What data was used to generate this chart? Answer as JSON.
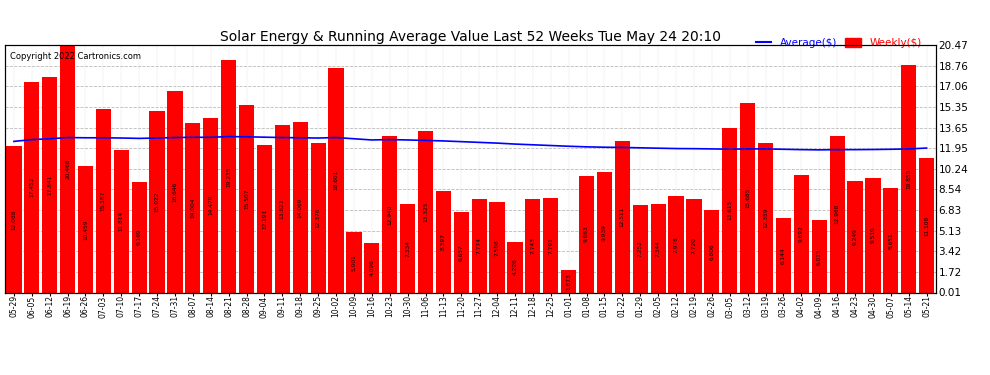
{
  "title": "Solar Energy & Running Average Value Last 52 Weeks Tue May 24 20:10",
  "copyright": "Copyright 2022 Cartronics.com",
  "bar_color": "#ff0000",
  "avg_line_color": "#0000ff",
  "background_color": "#ffffff",
  "grid_color": "#aaaaaa",
  "categories": [
    "05-29",
    "06-05",
    "06-12",
    "06-19",
    "06-26",
    "07-03",
    "07-10",
    "07-17",
    "07-24",
    "07-31",
    "08-07",
    "08-14",
    "08-21",
    "08-28",
    "09-04",
    "09-11",
    "09-18",
    "09-25",
    "10-02",
    "10-09",
    "10-16",
    "10-23",
    "10-30",
    "11-06",
    "11-13",
    "11-20",
    "11-27",
    "12-04",
    "12-11",
    "12-18",
    "12-25",
    "01-01",
    "01-08",
    "01-15",
    "01-22",
    "01-29",
    "02-05",
    "02-12",
    "02-19",
    "02-26",
    "03-05",
    "03-12",
    "03-19",
    "03-26",
    "04-02",
    "04-09",
    "04-16",
    "04-23",
    "04-30",
    "05-07",
    "05-14",
    "05-21"
  ],
  "weekly_values": [
    12.088,
    17.452,
    17.841,
    20.468,
    10.459,
    15.187,
    11.814,
    9.169,
    15.022,
    16.646,
    14.004,
    14.47,
    19.235,
    15.507,
    12.191,
    13.823,
    14.069,
    12.376,
    18.601,
    5.001,
    4.096,
    12.94,
    7.334,
    13.325,
    8.397,
    6.637,
    7.774,
    7.506,
    4.226,
    7.743,
    7.791,
    1.873,
    9.663,
    9.939,
    12.511,
    7.252,
    7.344,
    7.978,
    7.72,
    6.806,
    13.615,
    15.685,
    12.359,
    6.144,
    9.692,
    6.015,
    12.968,
    9.249,
    9.51,
    8.651,
    18.855,
    11.108
  ],
  "avg_values": [
    12.5,
    12.65,
    12.72,
    12.82,
    12.8,
    12.8,
    12.78,
    12.75,
    12.78,
    12.82,
    12.84,
    12.84,
    12.9,
    12.88,
    12.85,
    12.82,
    12.8,
    12.78,
    12.82,
    12.72,
    12.62,
    12.65,
    12.62,
    12.58,
    12.54,
    12.48,
    12.42,
    12.36,
    12.28,
    12.22,
    12.16,
    12.1,
    12.05,
    12.02,
    12.0,
    11.97,
    11.94,
    11.91,
    11.9,
    11.88,
    11.86,
    11.88,
    11.88,
    11.85,
    11.82,
    11.8,
    11.82,
    11.82,
    11.83,
    11.85,
    11.88,
    11.95
  ],
  "ylim": [
    0.01,
    20.47
  ],
  "yticks_right": [
    0.01,
    1.72,
    3.42,
    5.13,
    6.83,
    8.54,
    10.24,
    11.95,
    13.65,
    15.35,
    17.06,
    18.76,
    20.47
  ],
  "legend_labels": [
    "Average($)",
    "Weekly($)"
  ],
  "legend_colors": [
    "#0000ff",
    "#ff0000"
  ]
}
